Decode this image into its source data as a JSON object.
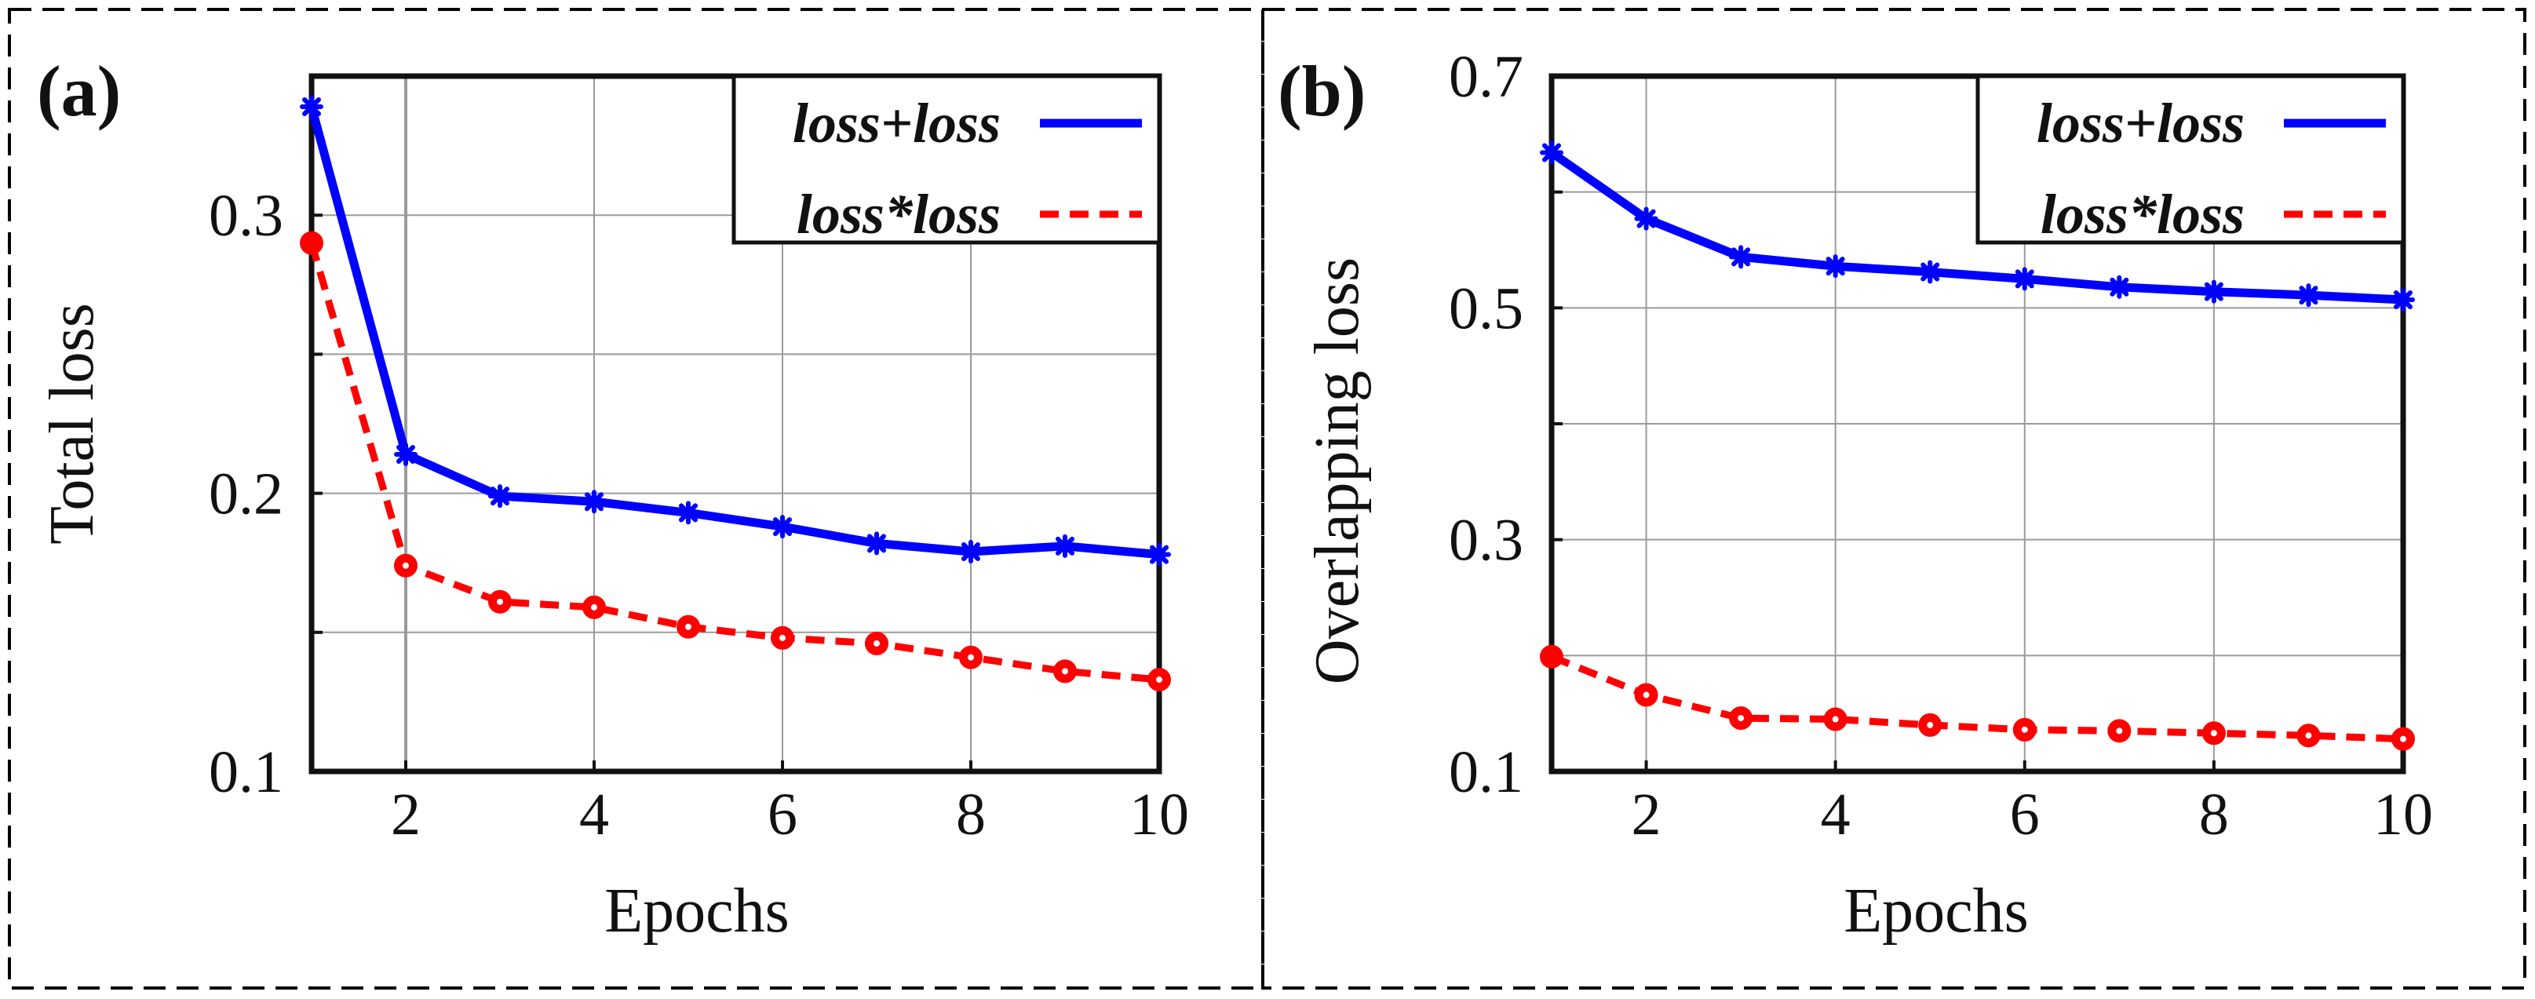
{
  "chart_data": [
    {
      "type": "line",
      "panel_label": "(a)",
      "xlabel": "Epochs",
      "ylabel": "Total loss",
      "x": [
        1,
        2,
        3,
        4,
        5,
        6,
        7,
        8,
        9,
        10
      ],
      "xlim": [
        1,
        10
      ],
      "ylim": [
        0.1,
        0.35
      ],
      "xticks": [
        2,
        4,
        6,
        8,
        10
      ],
      "xtick_labels": [
        "2",
        "4",
        "6",
        "8",
        "10"
      ],
      "yticks": [
        0.1,
        0.2,
        0.3
      ],
      "ytick_labels": [
        "0.1",
        "0.2",
        "0.3"
      ],
      "ygrid": [
        0.1,
        0.15,
        0.2,
        0.25,
        0.3,
        0.35
      ],
      "grid": true,
      "legend_position": "top-right",
      "series": [
        {
          "name": "loss+loss",
          "style": "solid",
          "color": "#0000ff",
          "values": [
            0.339,
            0.214,
            0.199,
            0.197,
            0.193,
            0.188,
            0.182,
            0.179,
            0.181,
            0.178
          ]
        },
        {
          "name": "loss*loss",
          "style": "dashed",
          "color": "#ff0000",
          "values": [
            0.29,
            0.174,
            0.161,
            0.159,
            0.152,
            0.148,
            0.146,
            0.141,
            0.136,
            0.133
          ]
        }
      ]
    },
    {
      "type": "line",
      "panel_label": "(b)",
      "xlabel": "Epochs",
      "ylabel": "Overlapping loss",
      "x": [
        1,
        2,
        3,
        4,
        5,
        6,
        7,
        8,
        9,
        10
      ],
      "xlim": [
        1,
        10
      ],
      "ylim": [
        0.1,
        0.7
      ],
      "xticks": [
        2,
        4,
        6,
        8,
        10
      ],
      "xtick_labels": [
        "2",
        "4",
        "6",
        "8",
        "10"
      ],
      "yticks": [
        0.1,
        0.3,
        0.5,
        0.7
      ],
      "ytick_labels": [
        "0.1",
        "0.3",
        "0.5",
        "0.7"
      ],
      "ygrid": [
        0.1,
        0.2,
        0.3,
        0.4,
        0.5,
        0.6,
        0.7
      ],
      "grid": true,
      "legend_position": "top-right",
      "series": [
        {
          "name": "loss+loss",
          "style": "solid",
          "color": "#0000ff",
          "values": [
            0.634,
            0.577,
            0.544,
            0.536,
            0.531,
            0.525,
            0.518,
            0.514,
            0.511,
            0.507
          ]
        },
        {
          "name": "loss*loss",
          "style": "dashed",
          "color": "#ff0000",
          "values": [
            0.199,
            0.166,
            0.146,
            0.145,
            0.14,
            0.136,
            0.135,
            0.133,
            0.131,
            0.128
          ]
        }
      ]
    }
  ]
}
